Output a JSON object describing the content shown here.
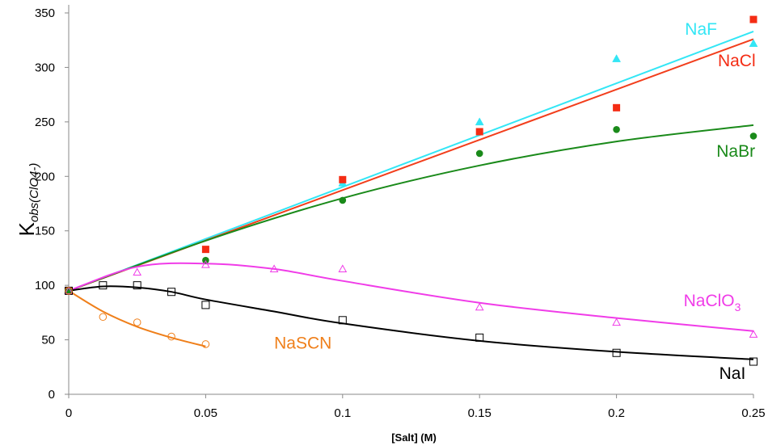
{
  "chart_data": {
    "type": "scatter",
    "title": "",
    "xlabel": "[Salt] (M)",
    "ylabel": {
      "main": "K",
      "sub": "obs(ClO4-)"
    },
    "xlim": [
      0,
      0.25
    ],
    "ylim": [
      0,
      350
    ],
    "xticks": [
      0,
      0.05,
      0.1,
      0.15,
      0.2,
      0.25
    ],
    "xtick_labels": [
      "0",
      "0.05",
      "0.1",
      "0.15",
      "0.2",
      "0.25"
    ],
    "yticks": [
      0,
      50,
      100,
      150,
      200,
      250,
      300,
      350
    ],
    "ytick_labels": [
      "0",
      "50",
      "100",
      "150",
      "200",
      "250",
      "300",
      "350"
    ],
    "grid": false,
    "series": [
      {
        "name": "NaF",
        "label_main": "NaF",
        "label_sub": "",
        "color": "#33e6f5",
        "marker": "triangle-filled",
        "points": [
          [
            0,
            95
          ],
          [
            0.1,
            194
          ],
          [
            0.15,
            250
          ],
          [
            0.2,
            308
          ],
          [
            0.25,
            322
          ]
        ],
        "fit": [
          [
            0,
            95
          ],
          [
            0.25,
            333
          ]
        ],
        "fit_style": "linear",
        "label_anchor": [
          0.225,
          330
        ]
      },
      {
        "name": "NaCl",
        "label_main": "NaCl",
        "label_sub": "",
        "color": "#f42c14",
        "line_color": "#f23e1c",
        "marker": "square-filled",
        "points": [
          [
            0,
            95
          ],
          [
            0.05,
            133
          ],
          [
            0.1,
            197
          ],
          [
            0.15,
            241
          ],
          [
            0.2,
            263
          ],
          [
            0.25,
            344
          ]
        ],
        "fit": [
          [
            0,
            95
          ],
          [
            0.25,
            326
          ]
        ],
        "fit_style": "linear",
        "label_anchor": [
          0.237,
          301
        ]
      },
      {
        "name": "NaBr",
        "label_main": "NaBr",
        "label_sub": "",
        "color": "#1a8a1a",
        "marker": "circle-filled",
        "points": [
          [
            0,
            95
          ],
          [
            0.05,
            123
          ],
          [
            0.1,
            178
          ],
          [
            0.15,
            221
          ],
          [
            0.2,
            243
          ],
          [
            0.25,
            237
          ]
        ],
        "fit": [
          [
            0,
            95
          ],
          [
            0.05,
            141
          ],
          [
            0.1,
            180
          ],
          [
            0.15,
            210
          ],
          [
            0.2,
            232
          ],
          [
            0.25,
            247
          ]
        ],
        "fit_style": "curve",
        "label_anchor": [
          0.2365,
          218
        ]
      },
      {
        "name": "NaClO3",
        "label_main": "NaClO",
        "label_sub": "3",
        "color": "#f03ce8",
        "marker": "triangle-open",
        "points": [
          [
            0,
            95
          ],
          [
            0.025,
            112
          ],
          [
            0.05,
            119
          ],
          [
            0.075,
            115
          ],
          [
            0.1,
            115
          ],
          [
            0.15,
            80
          ],
          [
            0.2,
            66
          ],
          [
            0.25,
            55
          ]
        ],
        "fit": [
          [
            0,
            95
          ],
          [
            0.025,
            117
          ],
          [
            0.05,
            120
          ],
          [
            0.075,
            115
          ],
          [
            0.1,
            104
          ],
          [
            0.15,
            84
          ],
          [
            0.2,
            70
          ],
          [
            0.25,
            58
          ]
        ],
        "fit_style": "curve",
        "label_anchor": [
          0.2245,
          81
        ]
      },
      {
        "name": "NaI",
        "label_main": "NaI",
        "label_sub": "",
        "color": "#000000",
        "marker": "square-open",
        "points": [
          [
            0,
            95
          ],
          [
            0.0125,
            100
          ],
          [
            0.025,
            100
          ],
          [
            0.0375,
            94
          ],
          [
            0.05,
            82
          ],
          [
            0.1,
            68
          ],
          [
            0.15,
            52
          ],
          [
            0.2,
            38
          ],
          [
            0.25,
            30
          ]
        ],
        "fit": [
          [
            0,
            95
          ],
          [
            0.0125,
            99
          ],
          [
            0.025,
            98
          ],
          [
            0.0375,
            94
          ],
          [
            0.05,
            87
          ],
          [
            0.075,
            76
          ],
          [
            0.1,
            65
          ],
          [
            0.15,
            49
          ],
          [
            0.2,
            39
          ],
          [
            0.25,
            32
          ]
        ],
        "fit_style": "curve",
        "label_anchor": [
          0.2375,
          14
        ]
      },
      {
        "name": "NaSCN",
        "label_main": "NaSCN",
        "label_sub": "",
        "color": "#ef7f1a",
        "marker": "circle-open",
        "points": [
          [
            0,
            95
          ],
          [
            0.0125,
            71
          ],
          [
            0.025,
            66
          ],
          [
            0.0375,
            53
          ],
          [
            0.05,
            46
          ]
        ],
        "fit": [
          [
            0,
            95
          ],
          [
            0.0125,
            76
          ],
          [
            0.025,
            62
          ],
          [
            0.0375,
            52
          ],
          [
            0.05,
            44
          ]
        ],
        "fit_style": "curve",
        "label_anchor": [
          0.075,
          42
        ]
      }
    ]
  }
}
